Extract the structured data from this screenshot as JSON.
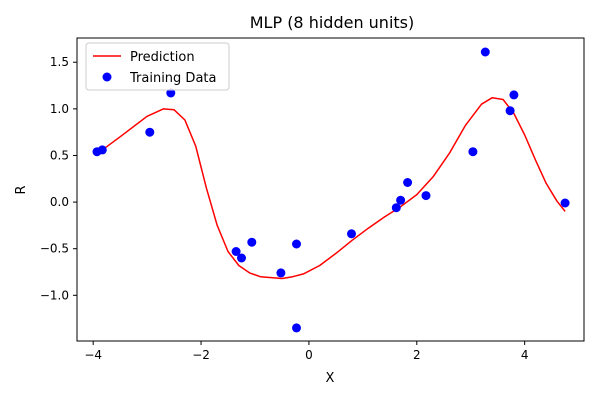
{
  "chart_data": {
    "type": "scatter",
    "title": "MLP (8 hidden units)",
    "xlabel": "X",
    "ylabel": "R",
    "xlim": [
      -4.3,
      5.1
    ],
    "ylim": [
      -1.49,
      1.76
    ],
    "xticks": [
      -4,
      -2,
      0,
      2,
      4
    ],
    "yticks": [
      -1.0,
      -0.5,
      0.0,
      0.5,
      1.0,
      1.5
    ],
    "xtick_labels": [
      "−4",
      "−2",
      "0",
      "2",
      "4"
    ],
    "ytick_labels": [
      "−1.0",
      "−0.5",
      "0.0",
      "0.5",
      "1.0",
      "1.5"
    ],
    "grid": false,
    "legend": {
      "position": "top-left",
      "entries": [
        "Prediction",
        "Training Data"
      ]
    },
    "series": [
      {
        "name": "Prediction",
        "type": "line",
        "color": "#ff0000",
        "x": [
          -3.9,
          -3.5,
          -3.0,
          -2.7,
          -2.5,
          -2.3,
          -2.1,
          -1.9,
          -1.7,
          -1.5,
          -1.3,
          -1.1,
          -0.9,
          -0.7,
          -0.5,
          -0.3,
          -0.1,
          0.2,
          0.5,
          0.8,
          1.1,
          1.4,
          1.7,
          2.0,
          2.3,
          2.6,
          2.9,
          3.2,
          3.4,
          3.6,
          3.8,
          4.0,
          4.2,
          4.4,
          4.6,
          4.75
        ],
        "y": [
          0.53,
          0.7,
          0.92,
          1.0,
          0.99,
          0.88,
          0.6,
          0.15,
          -0.25,
          -0.53,
          -0.68,
          -0.76,
          -0.8,
          -0.81,
          -0.82,
          -0.8,
          -0.77,
          -0.68,
          -0.55,
          -0.41,
          -0.28,
          -0.16,
          -0.05,
          0.08,
          0.27,
          0.52,
          0.82,
          1.05,
          1.12,
          1.1,
          0.95,
          0.72,
          0.45,
          0.2,
          0.01,
          -0.1
        ]
      },
      {
        "name": "Training Data",
        "type": "scatter",
        "color": "#0000ff",
        "x": [
          -3.93,
          -3.83,
          -2.95,
          -2.56,
          -1.35,
          -1.25,
          -1.06,
          -0.52,
          -0.23,
          -0.23,
          0.79,
          1.62,
          1.7,
          1.83,
          2.17,
          3.04,
          3.27,
          3.73,
          3.8,
          4.75
        ],
        "y": [
          0.54,
          0.56,
          0.75,
          1.17,
          -0.53,
          -0.6,
          -0.43,
          -0.76,
          -0.45,
          -1.35,
          -0.34,
          -0.06,
          0.02,
          0.21,
          0.07,
          0.54,
          1.61,
          0.98,
          1.15,
          -0.01
        ]
      }
    ]
  }
}
